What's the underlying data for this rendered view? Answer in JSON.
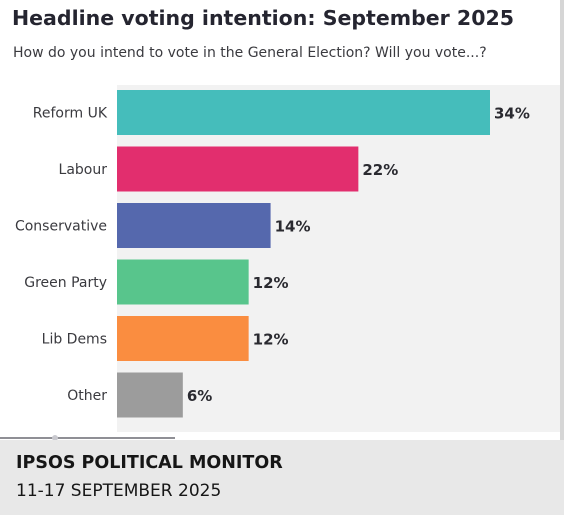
{
  "chart_data": {
    "type": "bar",
    "orientation": "horizontal",
    "title": "Headline voting intention: September 2025",
    "subtitle": "How do you intend to vote in the General Election? Will you vote...?",
    "categories": [
      "Reform UK",
      "Labour",
      "Conservative",
      "Green Party",
      "Lib Dems",
      "Other"
    ],
    "values": [
      34,
      22,
      14,
      12,
      12,
      6
    ],
    "value_labels": [
      "34%",
      "22%",
      "14%",
      "12%",
      "12%",
      "6%"
    ],
    "colors": [
      "#45bdbb",
      "#e22e6e",
      "#5568ad",
      "#58c58c",
      "#fa8d40",
      "#9c9c9c"
    ],
    "unit": "%",
    "xlim": [
      0,
      34
    ],
    "grid": false,
    "legend": "none"
  },
  "caption": {
    "title": "IPSOS POLITICAL MONITOR",
    "dates": "11-17 SEPTEMBER 2025"
  },
  "colors": {
    "plot_background": "#f2f2f2",
    "caption_background": "#e8e8e8",
    "text": "#252530"
  }
}
